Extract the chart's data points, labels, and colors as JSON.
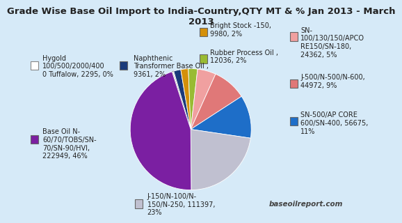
{
  "title": "Grade Wise Base Oil Import to India-Country,QTY MT & % Jan 2013 - March\n2013",
  "title_fontsize": 9.5,
  "watermark": "baseoilreport.com",
  "slices": [
    {
      "label": "Hygold\n100/500/2000/400\n0 Tuffalow, 2295, 0%",
      "value": 2295,
      "color": "#FFFFFF",
      "edge": "#AAAAAA"
    },
    {
      "label": "Naphthenic\nTransformer Base Oil ,\n9361, 2%",
      "value": 9361,
      "color": "#1A3A7A"
    },
    {
      "label": "Bright Stock -150,\n9980, 2%",
      "value": 9980,
      "color": "#D4900A"
    },
    {
      "label": "Rubber Process Oil ,\n12036, 2%",
      "value": 12036,
      "color": "#99BB33"
    },
    {
      "label": "SN-\n100/130/150/APCO\nRE150/SN-180,\n24362, 5%",
      "value": 24362,
      "color": "#F0A0A0"
    },
    {
      "label": "J-500/N-500/N-600,\n44972, 9%",
      "value": 44972,
      "color": "#E07878"
    },
    {
      "label": "SN-500/AP CORE\n600/SN-400, 56675,\n11%",
      "value": 56675,
      "color": "#1E6EC8"
    },
    {
      "label": "J-150/N-100/N-\n150/N-250, 111397,\n23%",
      "value": 111397,
      "color": "#C0C0D0"
    },
    {
      "label": "Base Oil N-\n60/70/TOBS/SN-\n70/SN-90/HVI,\n222949, 46%",
      "value": 222949,
      "color": "#7B1FA2"
    }
  ],
  "background_color": "#D6EAF8",
  "legend_fontsize": 7.0,
  "startangle": 108
}
